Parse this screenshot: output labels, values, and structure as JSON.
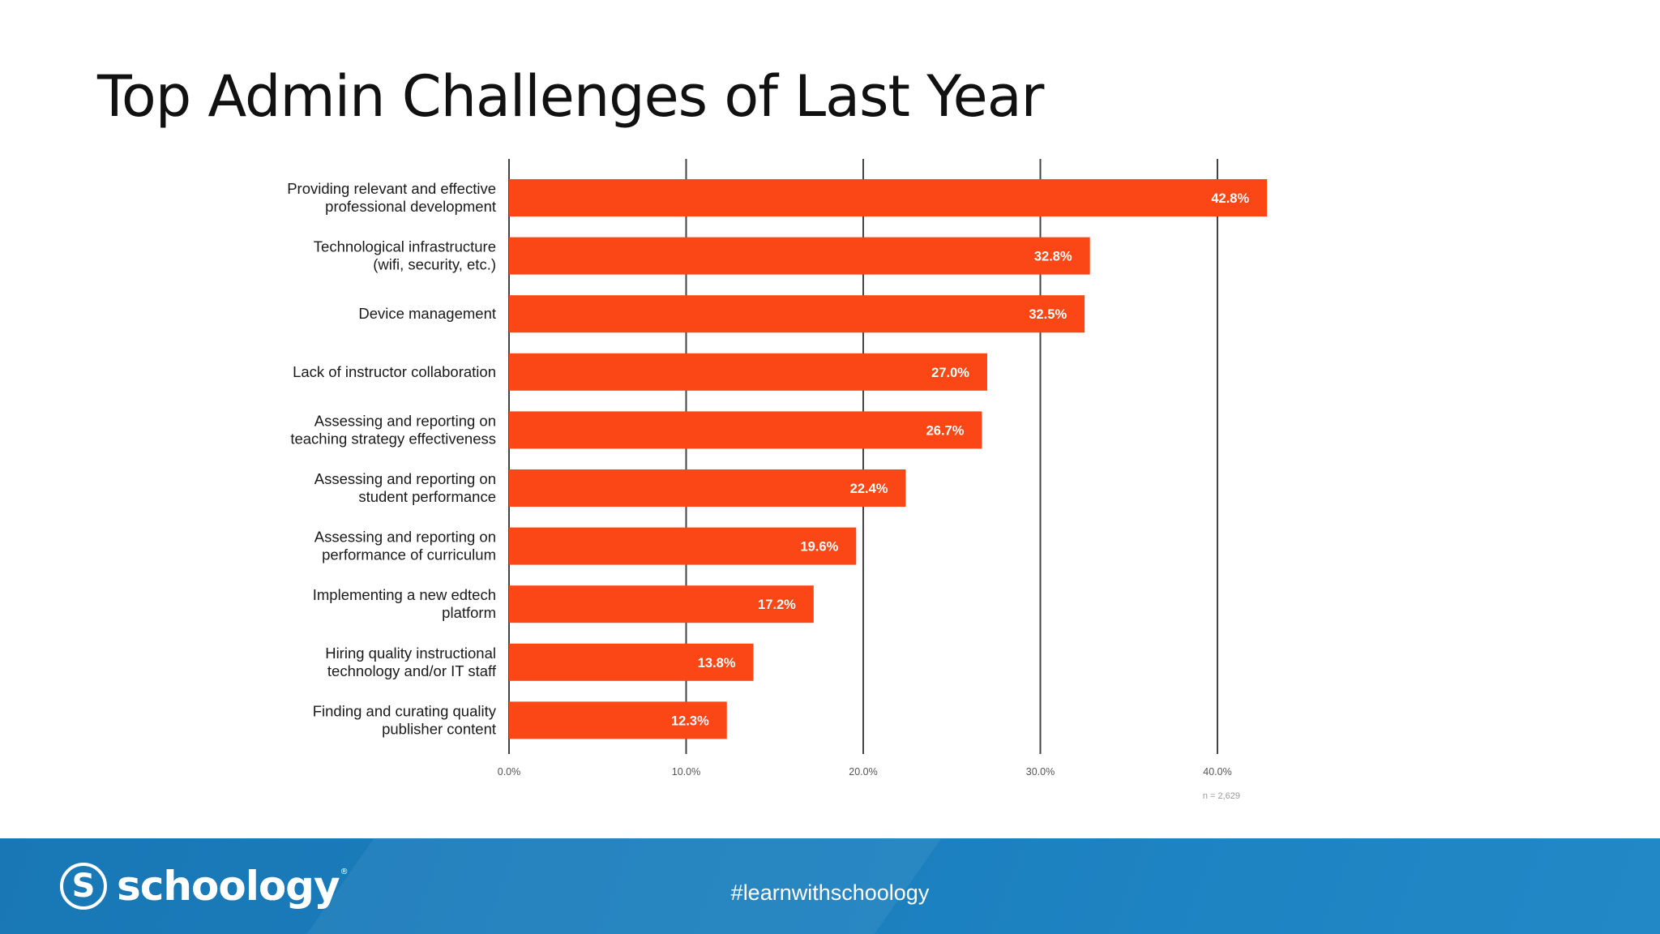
{
  "slide": {
    "title": "Top Admin Challenges of Last Year"
  },
  "footer": {
    "logo_text": "schoology",
    "logo_mark": "S",
    "logo_registered": "®",
    "hashtag": "#learnwithschoology"
  },
  "colors": {
    "bar": "#fb4616",
    "gridline": "#444444",
    "footer_blue": "#1a7ebd"
  },
  "chart_data": {
    "type": "bar",
    "orientation": "horizontal",
    "categories": [
      [
        "Providing relevant and effective",
        "professional development"
      ],
      [
        "Technological infrastructure",
        "(wifi, security, etc.)"
      ],
      [
        "Device management"
      ],
      [
        "Lack of instructor collaboration"
      ],
      [
        "Assessing and reporting on",
        "teaching strategy effectiveness"
      ],
      [
        "Assessing and reporting on",
        "student performance"
      ],
      [
        "Assessing and reporting on",
        "performance of curriculum"
      ],
      [
        "Implementing a new edtech",
        "platform"
      ],
      [
        "Hiring quality instructional",
        "technology and/or IT staff"
      ],
      [
        "Finding and curating quality",
        "publisher content"
      ]
    ],
    "values": [
      42.8,
      32.8,
      32.5,
      27.0,
      26.7,
      22.4,
      19.6,
      17.2,
      13.8,
      12.3
    ],
    "value_labels": [
      "42.8%",
      "32.8%",
      "32.5%",
      "27.0%",
      "26.7%",
      "22.4%",
      "19.6%",
      "17.2%",
      "13.8%",
      "12.3%"
    ],
    "xlim": [
      0,
      40
    ],
    "xticks": [
      0,
      10,
      20,
      30,
      40
    ],
    "xtick_labels": [
      "0.0%",
      "10.0%",
      "20.0%",
      "30.0%",
      "40.0%"
    ],
    "note": "n = 2,629",
    "grid": true,
    "legend": "none"
  }
}
